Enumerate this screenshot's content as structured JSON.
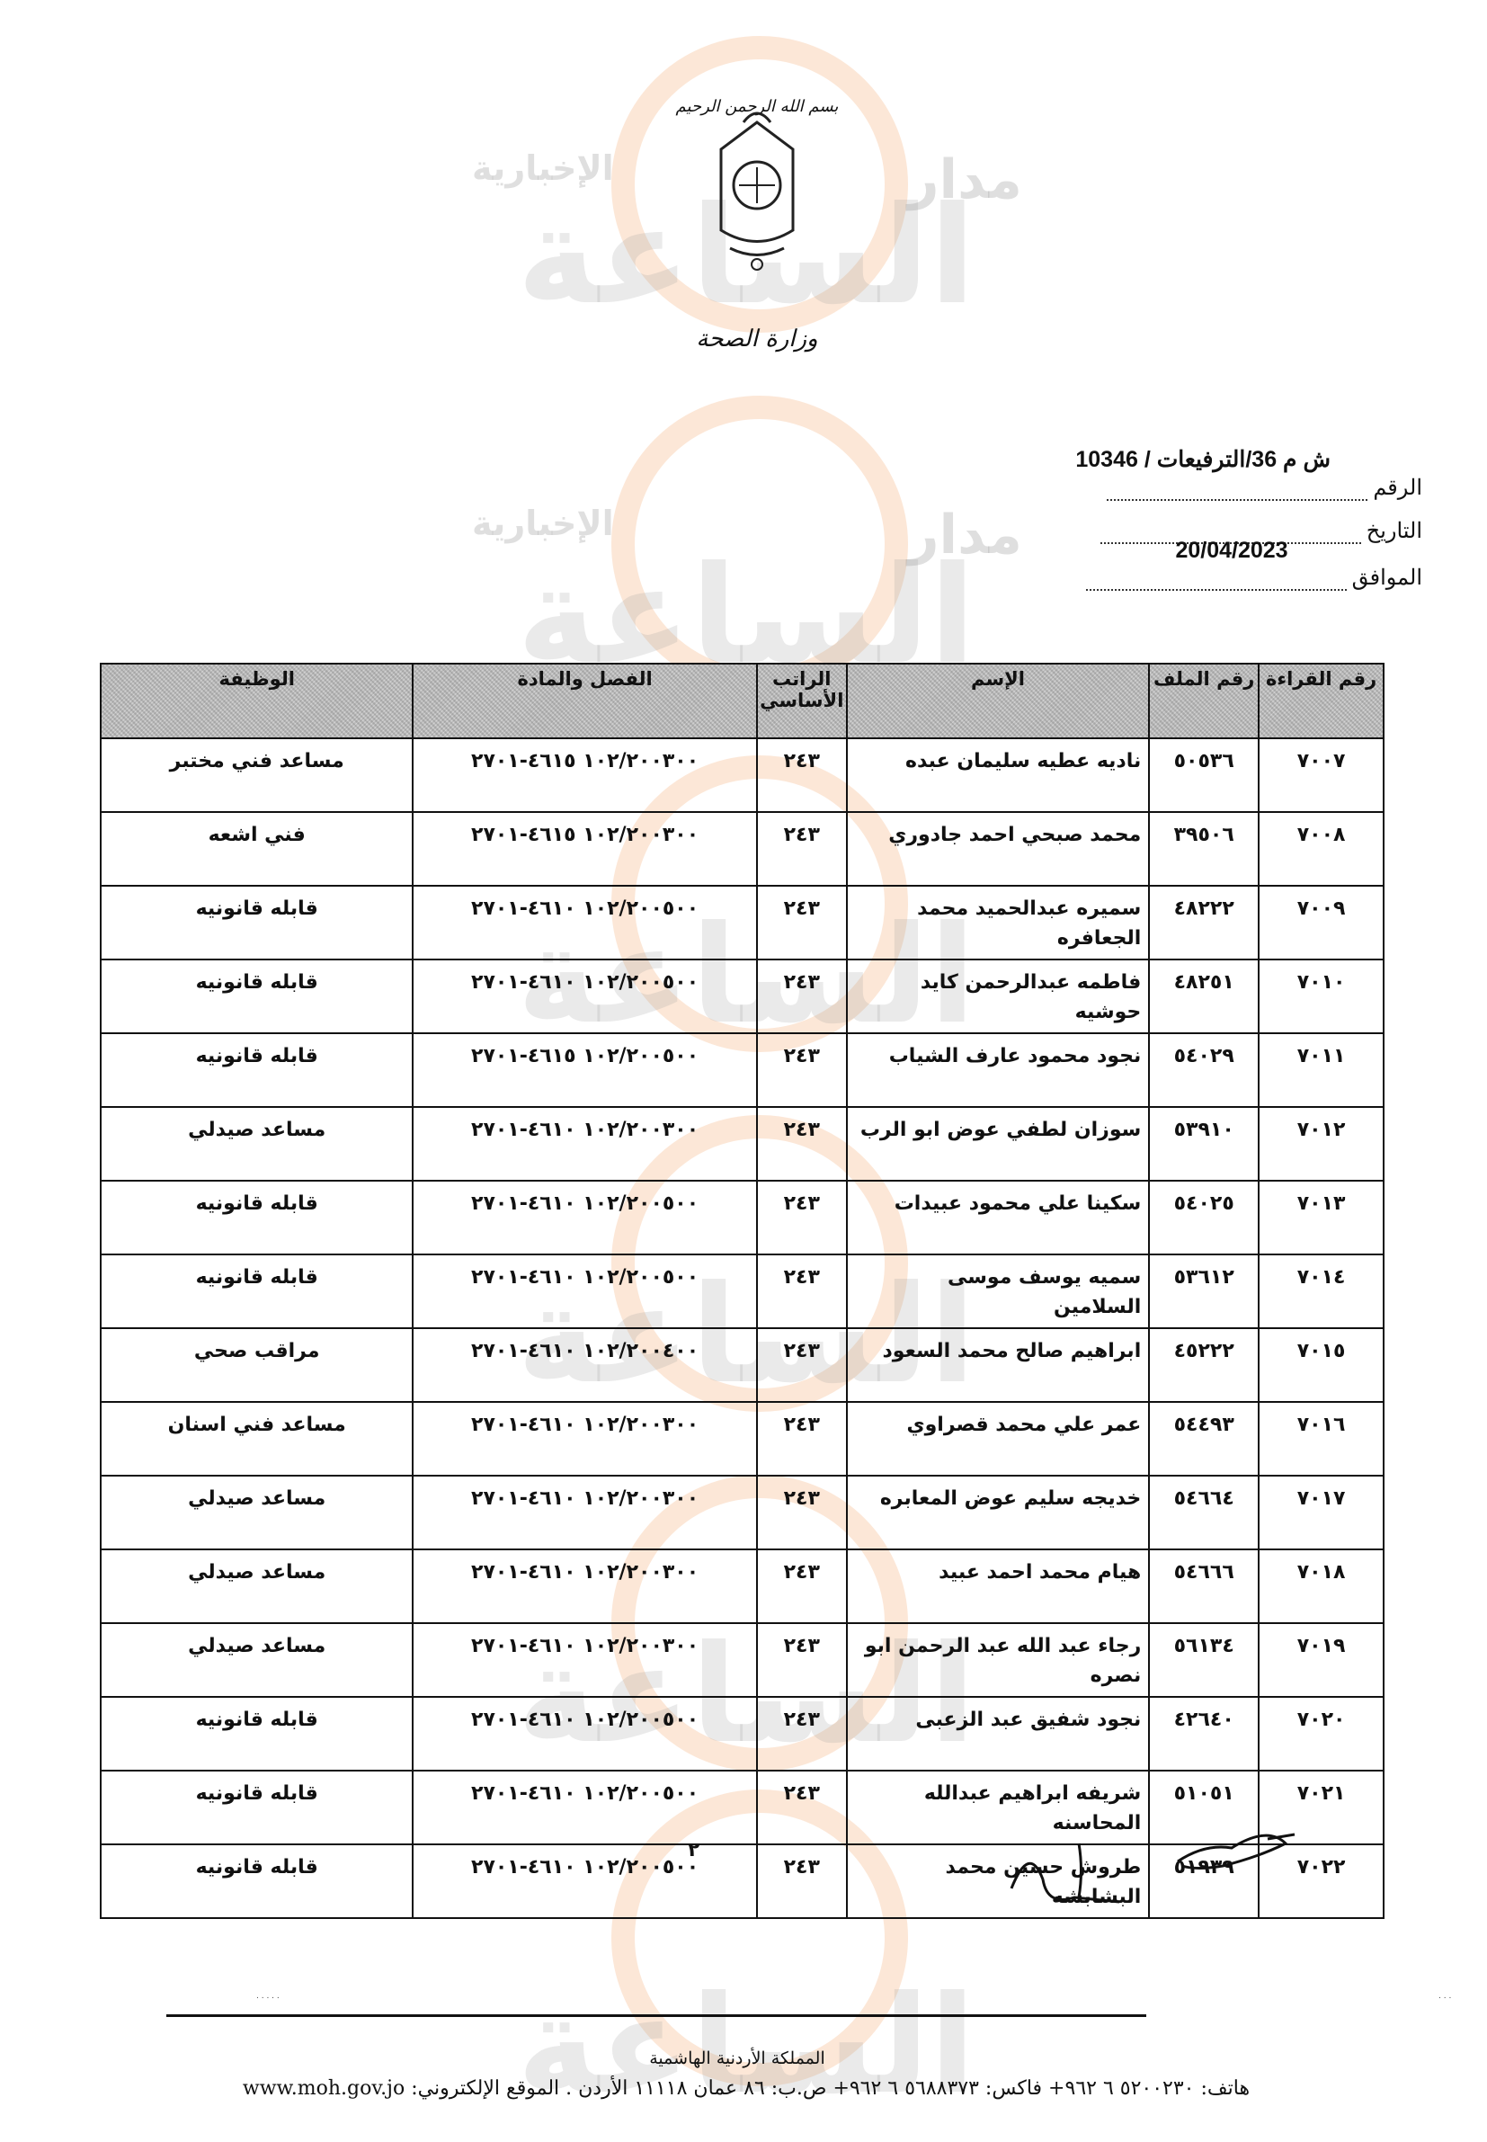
{
  "watermark": {
    "brand_main": "الساعة",
    "brand_top": "مدار",
    "brand_sub": "الإخبارية"
  },
  "letterhead": {
    "bismillah": "بسم الله الرحمن الرحيم",
    "emblem": "jordan-coat-of-arms",
    "ministry": "وزارة الصحة"
  },
  "reference": {
    "number_value": "ش م 36/الترفيعات / 10346",
    "number_label": "الرقم",
    "date_label": "التاريخ",
    "date_value": "20/04/2023",
    "corresponding_label": "الموافق"
  },
  "table": {
    "headers": {
      "seq": "رقم القراءة",
      "file": "رقم الملف",
      "name": "الإسم",
      "salary": "الراتب الأساسي",
      "code": "الفصل والمادة",
      "job": "الوظيفة"
    },
    "rows": [
      {
        "seq": "٧٠٠٧",
        "file": "٥٠٥٣٦",
        "name": "ناديه عطيه سليمان عبده",
        "salary": "٢٤٣",
        "code": "١٠٢/٢٠٠٣٠٠ ٤٦١٥-٢٧٠١",
        "job": "مساعد فني مختبر"
      },
      {
        "seq": "٧٠٠٨",
        "file": "٣٩٥٠٦",
        "name": "محمد صبحي احمد جادوري",
        "salary": "٢٤٣",
        "code": "١٠٢/٢٠٠٣٠٠ ٤٦١٥-٢٧٠١",
        "job": "فني اشعه"
      },
      {
        "seq": "٧٠٠٩",
        "file": "٤٨٢٢٢",
        "name": "سميره عبدالحميد محمد الجعافره",
        "salary": "٢٤٣",
        "code": "١٠٢/٢٠٠٥٠٠ ٤٦١٠-٢٧٠١",
        "job": "قابله قانونيه"
      },
      {
        "seq": "٧٠١٠",
        "file": "٤٨٢٥١",
        "name": "فاطمه عبدالرحمن كايد حوشيه",
        "salary": "٢٤٣",
        "code": "١٠٢/٢٠٠٥٠٠ ٤٦١٠-٢٧٠١",
        "job": "قابله قانونيه"
      },
      {
        "seq": "٧٠١١",
        "file": "٥٤٠٢٩",
        "name": "نجود محمود عارف الشياب",
        "salary": "٢٤٣",
        "code": "١٠٢/٢٠٠٥٠٠ ٤٦١٥-٢٧٠١",
        "job": "قابله قانونيه"
      },
      {
        "seq": "٧٠١٢",
        "file": "٥٣٩١٠",
        "name": "سوزان لطفي عوض ابو الرب",
        "salary": "٢٤٣",
        "code": "١٠٢/٢٠٠٣٠٠ ٤٦١٠-٢٧٠١",
        "job": "مساعد صيدلي"
      },
      {
        "seq": "٧٠١٣",
        "file": "٥٤٠٢٥",
        "name": "سكينا علي محمود عبيدات",
        "salary": "٢٤٣",
        "code": "١٠٢/٢٠٠٥٠٠ ٤٦١٠-٢٧٠١",
        "job": "قابله قانونيه"
      },
      {
        "seq": "٧٠١٤",
        "file": "٥٣٦١٢",
        "name": "سميه يوسف موسى السلامين",
        "salary": "٢٤٣",
        "code": "١٠٢/٢٠٠٥٠٠ ٤٦١٠-٢٧٠١",
        "job": "قابله قانونيه"
      },
      {
        "seq": "٧٠١٥",
        "file": "٤٥٢٢٢",
        "name": "ابراهيم صالح محمد السعود",
        "salary": "٢٤٣",
        "code": "١٠٢/٢٠٠٤٠٠ ٤٦١٠-٢٧٠١",
        "job": "مراقب صحي"
      },
      {
        "seq": "٧٠١٦",
        "file": "٥٤٤٩٣",
        "name": "عمر علي محمد قصراوي",
        "salary": "٢٤٣",
        "code": "١٠٢/٢٠٠٣٠٠ ٤٦١٠-٢٧٠١",
        "job": "مساعد فني اسنان"
      },
      {
        "seq": "٧٠١٧",
        "file": "٥٤٦٦٤",
        "name": "خديجه سليم عوض المعابره",
        "salary": "٢٤٣",
        "code": "١٠٢/٢٠٠٣٠٠ ٤٦١٠-٢٧٠١",
        "job": "مساعد صيدلي"
      },
      {
        "seq": "٧٠١٨",
        "file": "٥٤٦٦٦",
        "name": "هيام محمد احمد عبيد",
        "salary": "٢٤٣",
        "code": "١٠٢/٢٠٠٣٠٠ ٤٦١٠-٢٧٠١",
        "job": "مساعد صيدلي"
      },
      {
        "seq": "٧٠١٩",
        "file": "٥٦١٣٤",
        "name": "رجاء عبد الله عبد الرحمن ابو نصره",
        "salary": "٢٤٣",
        "code": "١٠٢/٢٠٠٣٠٠ ٤٦١٠-٢٧٠١",
        "job": "مساعد صيدلي"
      },
      {
        "seq": "٧٠٢٠",
        "file": "٤٢٦٤٠",
        "name": "نجود شفيق عبد الزعبى",
        "salary": "٢٤٣",
        "code": "١٠٢/٢٠٠٥٠٠ ٤٦١٠-٢٧٠١",
        "job": "قابله قانونيه"
      },
      {
        "seq": "٧٠٢١",
        "file": "٥١٠٥١",
        "name": "شريفه ابراهيم عبدالله المحاسنه",
        "salary": "٢٤٣",
        "code": "١٠٢/٢٠٠٥٠٠ ٤٦١٠-٢٧٠١",
        "job": "قابله قانونيه"
      },
      {
        "seq": "٧٠٢٢",
        "file": "٥١٩٣٩",
        "name": "طروش حسين محمد البشابشه",
        "salary": "٢٤٣",
        "code": "١٠٢/٢٠٠٥٠٠ ٤٦١٠-٢٧٠١",
        "job": "قابله قانونيه"
      }
    ]
  },
  "page_number": "٢",
  "footer": {
    "kingdom": "المملكة الأردنية الهاشمية",
    "contact": "هاتف: ٥٢٠٠٢٣٠ ٦ ٩٦٢+  فاكس: ٥٦٨٨٣٧٣ ٦ ٩٦٢+  ص.ب: ٨٦ عمان ١١١١٨ الأردن . الموقع الإلكتروني: www.moh.gov.jo"
  }
}
